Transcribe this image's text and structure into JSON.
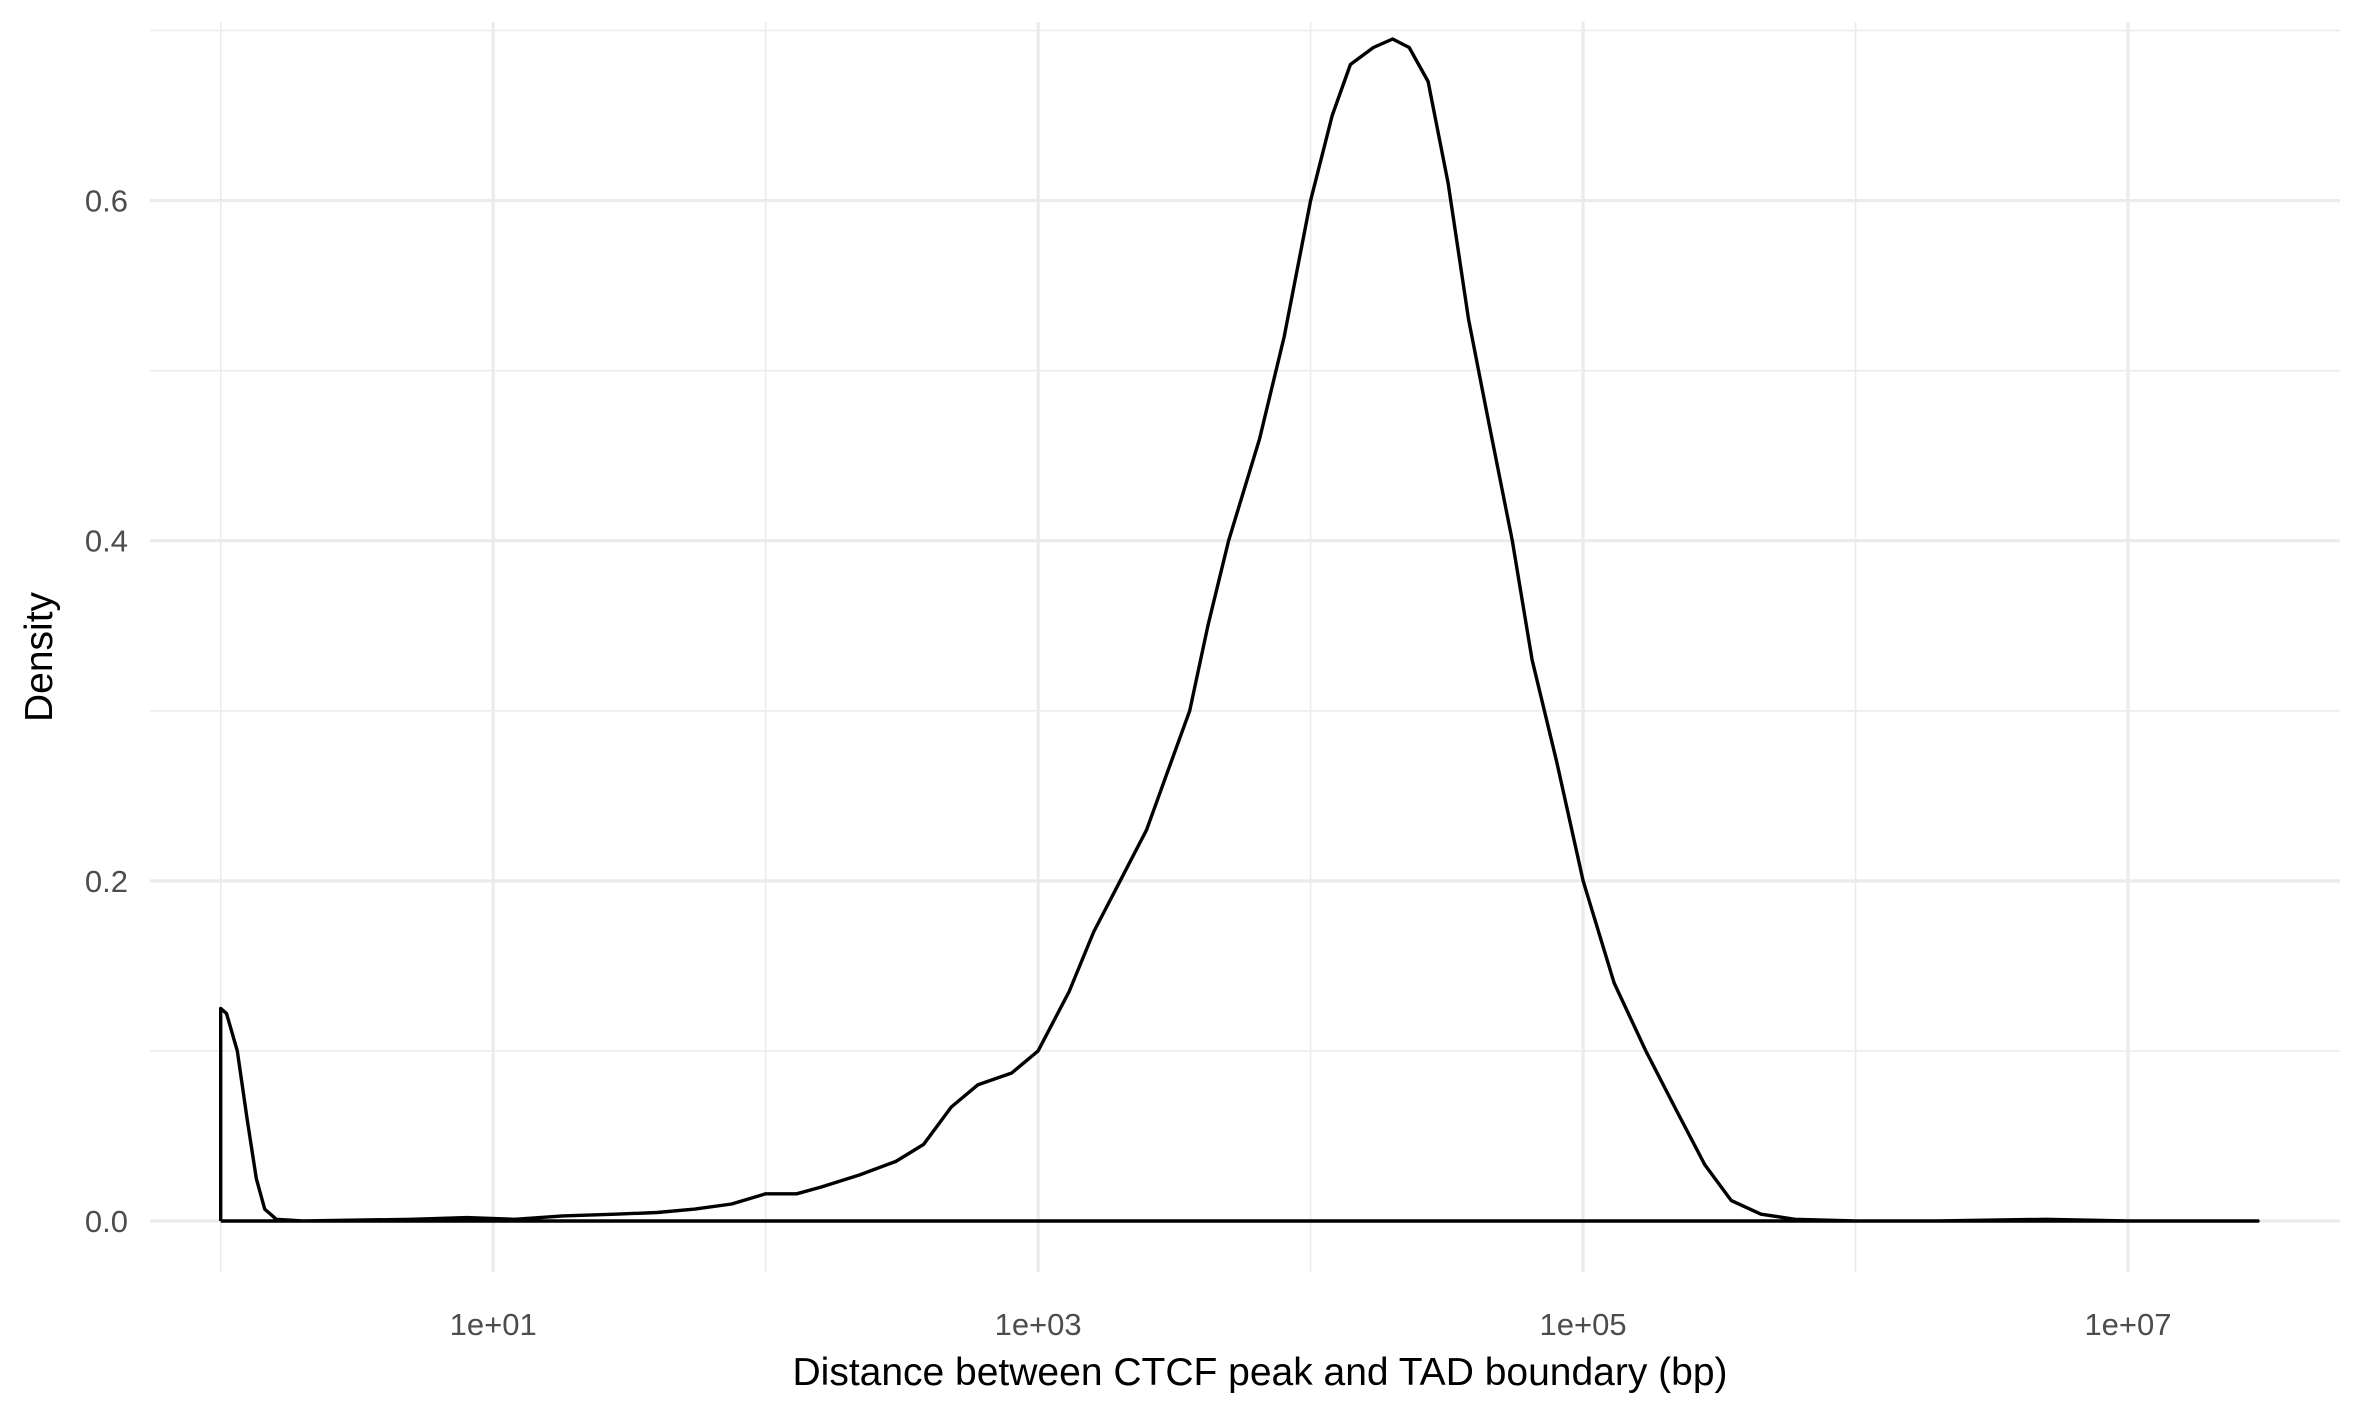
{
  "chart_data": {
    "type": "line",
    "title": "",
    "xlabel": "Distance between CTCF peak and TAD boundary (bp)",
    "ylabel": "Density",
    "x_scale": "log10",
    "xlim": [
      0.55,
      60000000
    ],
    "ylim": [
      -0.03,
      0.705
    ],
    "x_ticks": [
      {
        "value": 10,
        "label": "1e+01"
      },
      {
        "value": 1000,
        "label": "1e+03"
      },
      {
        "value": 100000,
        "label": "1e+05"
      },
      {
        "value": 10000000,
        "label": "1e+07"
      }
    ],
    "x_minor_ticks": [
      1,
      100,
      10000,
      1000000
    ],
    "y_ticks": [
      {
        "value": 0.0,
        "label": "0.0"
      },
      {
        "value": 0.2,
        "label": "0.2"
      },
      {
        "value": 0.4,
        "label": "0.4"
      },
      {
        "value": 0.6,
        "label": "0.6"
      }
    ],
    "y_minor_ticks": [
      0.1,
      0.3,
      0.5,
      0.7
    ],
    "grid": true,
    "legend": "none",
    "colors": {
      "line": "#000000",
      "grid": "#ebebeb",
      "background": "#ffffff"
    },
    "series": [
      {
        "values": [
          [
            1,
            0
          ],
          [
            1,
            0.125
          ],
          [
            1.05,
            0.122
          ],
          [
            1.15,
            0.1
          ],
          [
            1.25,
            0.06
          ],
          [
            1.35,
            0.025
          ],
          [
            1.45,
            0.007
          ],
          [
            1.6,
            0.001
          ],
          [
            2,
            0
          ],
          [
            5,
            0.001
          ],
          [
            8,
            0.002
          ],
          [
            12,
            0.001
          ],
          [
            18,
            0.003
          ],
          [
            28,
            0.004
          ],
          [
            40,
            0.005
          ],
          [
            55,
            0.007
          ],
          [
            75,
            0.01
          ],
          [
            100,
            0.016
          ],
          [
            130,
            0.016
          ],
          [
            160,
            0.02
          ],
          [
            220,
            0.027
          ],
          [
            300,
            0.035
          ],
          [
            380,
            0.045
          ],
          [
            480,
            0.067
          ],
          [
            600,
            0.08
          ],
          [
            800,
            0.087
          ],
          [
            1000,
            0.1
          ],
          [
            1300,
            0.135
          ],
          [
            1600,
            0.17
          ],
          [
            2000,
            0.2
          ],
          [
            2500,
            0.23
          ],
          [
            3000,
            0.265
          ],
          [
            3600,
            0.3
          ],
          [
            4200,
            0.35
          ],
          [
            5000,
            0.4
          ],
          [
            6500,
            0.46
          ],
          [
            8000,
            0.52
          ],
          [
            10000,
            0.6
          ],
          [
            12000,
            0.65
          ],
          [
            14000,
            0.68
          ],
          [
            17000,
            0.69
          ],
          [
            20000,
            0.695
          ],
          [
            23000,
            0.69
          ],
          [
            27000,
            0.67
          ],
          [
            32000,
            0.61
          ],
          [
            38000,
            0.53
          ],
          [
            45000,
            0.47
          ],
          [
            55000,
            0.4
          ],
          [
            65000,
            0.33
          ],
          [
            80000,
            0.27
          ],
          [
            100000,
            0.2
          ],
          [
            130000,
            0.14
          ],
          [
            170000,
            0.1
          ],
          [
            220000,
            0.065
          ],
          [
            280000,
            0.033
          ],
          [
            350000,
            0.012
          ],
          [
            450000,
            0.004
          ],
          [
            600000,
            0.001
          ],
          [
            1000000,
            0
          ],
          [
            2000000,
            0
          ],
          [
            5000000,
            0.001
          ],
          [
            10000000,
            0
          ],
          [
            30000000,
            0
          ],
          [
            30000000,
            0
          ],
          [
            1,
            0
          ]
        ]
      }
    ]
  }
}
